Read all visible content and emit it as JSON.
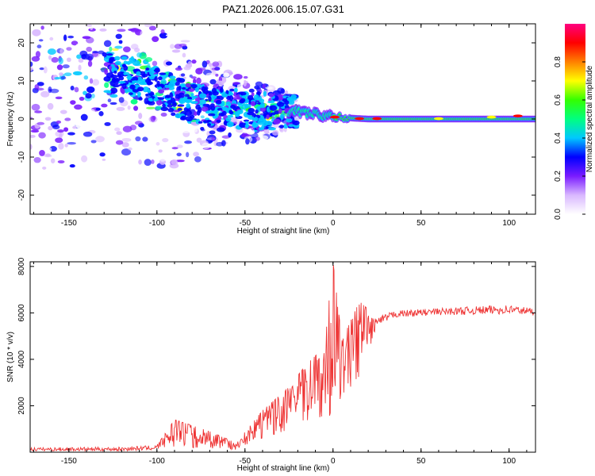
{
  "title": "PAZ1.2026.006.15.07.G31",
  "chart_data": [
    {
      "type": "heatmap",
      "name": "spectrogram",
      "xlabel": "Height of straight line (km)",
      "ylabel": "Frequency (Hz)",
      "xlim": [
        -172,
        115
      ],
      "ylim": [
        -25,
        25
      ],
      "x_ticks": [
        -150,
        -100,
        -50,
        0,
        50,
        100
      ],
      "y_ticks": [
        -20,
        -10,
        0,
        10,
        20
      ],
      "ridge": [
        {
          "x": -120,
          "freq": 12
        },
        {
          "x": -100,
          "freq": 8
        },
        {
          "x": -80,
          "freq": 4
        },
        {
          "x": -60,
          "freq": 3
        },
        {
          "x": -40,
          "freq": 2
        },
        {
          "x": -20,
          "freq": 2
        },
        {
          "x": 0,
          "freq": 0.5
        },
        {
          "x": 20,
          "freq": 0
        },
        {
          "x": 50,
          "freq": 0
        },
        {
          "x": 80,
          "freq": 0
        },
        {
          "x": 110,
          "freq": 0
        }
      ],
      "colorbar": {
        "label": "Normalized spectral amplitude",
        "range": [
          0,
          1
        ],
        "ticks": [
          "0.0",
          "0.2",
          "0.4",
          "0.6",
          "0.8"
        ],
        "colors": [
          "#ffffff",
          "#d9b8ff",
          "#7a1cff",
          "#0000ff",
          "#00c8ff",
          "#00ff80",
          "#33ff00",
          "#ffff00",
          "#ff8000",
          "#ff0000",
          "#ff0080"
        ]
      }
    },
    {
      "type": "line",
      "name": "snr",
      "xlabel": "Height of straight line (km)",
      "ylabel": "SNR (10 * v/v)",
      "xlim": [
        -172,
        115
      ],
      "ylim": [
        0,
        8200
      ],
      "x_ticks": [
        -150,
        -100,
        -50,
        0,
        50,
        100
      ],
      "y_ticks": [
        2000,
        4000,
        6000,
        8000
      ],
      "line_color": "#ee3333",
      "envelope": [
        {
          "x": -172,
          "low": 50,
          "high": 200
        },
        {
          "x": -120,
          "low": 50,
          "high": 220
        },
        {
          "x": -100,
          "low": 100,
          "high": 300
        },
        {
          "x": -90,
          "low": 200,
          "high": 1400
        },
        {
          "x": -70,
          "low": 150,
          "high": 900
        },
        {
          "x": -55,
          "low": 100,
          "high": 400
        },
        {
          "x": -40,
          "low": 600,
          "high": 1800
        },
        {
          "x": -25,
          "low": 900,
          "high": 2800
        },
        {
          "x": -15,
          "low": 1200,
          "high": 3800
        },
        {
          "x": -5,
          "low": 1500,
          "high": 4500
        },
        {
          "x": 0,
          "low": 1600,
          "high": 8200
        },
        {
          "x": 5,
          "low": 2000,
          "high": 4800
        },
        {
          "x": 15,
          "low": 3000,
          "high": 6500
        },
        {
          "x": 25,
          "low": 5400,
          "high": 5800
        },
        {
          "x": 35,
          "low": 5800,
          "high": 6100
        },
        {
          "x": 60,
          "low": 5900,
          "high": 6200
        },
        {
          "x": 100,
          "low": 5950,
          "high": 6350
        },
        {
          "x": 115,
          "low": 5900,
          "high": 6200
        }
      ]
    }
  ]
}
